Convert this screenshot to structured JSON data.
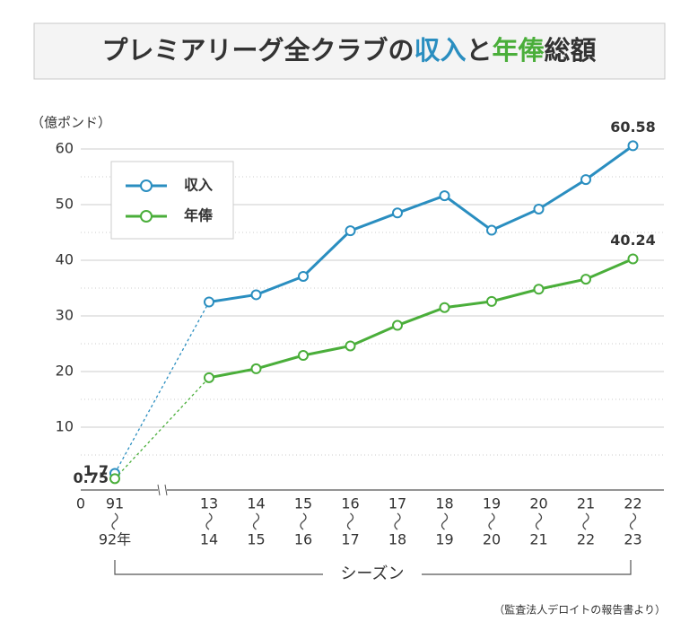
{
  "chart_data": {
    "type": "line",
    "title": [
      "プレミアリーグ全クラブの",
      "収入",
      "と",
      "年俸",
      "総額"
    ],
    "y_axis_label": "（億ポンド）",
    "x_axis_label": "シーズン",
    "source": "（監査法人デロイトの報告書より）",
    "categories": [
      [
        "91",
        "92年"
      ],
      [
        "13",
        "14"
      ],
      [
        "14",
        "15"
      ],
      [
        "15",
        "16"
      ],
      [
        "16",
        "17"
      ],
      [
        "17",
        "18"
      ],
      [
        "18",
        "19"
      ],
      [
        "19",
        "20"
      ],
      [
        "20",
        "21"
      ],
      [
        "21",
        "22"
      ],
      [
        "22",
        "23"
      ]
    ],
    "series": [
      {
        "name": "収入",
        "color": "#2a8ec0",
        "values": [
          1.7,
          32.5,
          33.8,
          37.1,
          45.3,
          48.5,
          51.6,
          45.4,
          49.2,
          54.5,
          60.58
        ],
        "value_labels": [
          "1.7",
          null,
          null,
          null,
          null,
          null,
          null,
          null,
          null,
          null,
          "60.58"
        ]
      },
      {
        "name": "年俸",
        "color": "#4aae3a",
        "values": [
          0.75,
          18.9,
          20.5,
          22.9,
          24.6,
          28.3,
          31.5,
          32.6,
          34.8,
          36.6,
          40.24
        ],
        "value_labels": [
          "0.75",
          null,
          null,
          null,
          null,
          null,
          null,
          null,
          null,
          null,
          "40.24"
        ]
      }
    ],
    "ylim": [
      0,
      60
    ],
    "yticks": [
      0,
      10,
      20,
      30,
      40,
      50,
      60
    ],
    "minor_yticks": [
      5,
      15,
      25,
      35,
      45,
      55
    ],
    "grid": true,
    "legend": "upper left",
    "axis_break": true,
    "first_segment_dashed": true
  }
}
